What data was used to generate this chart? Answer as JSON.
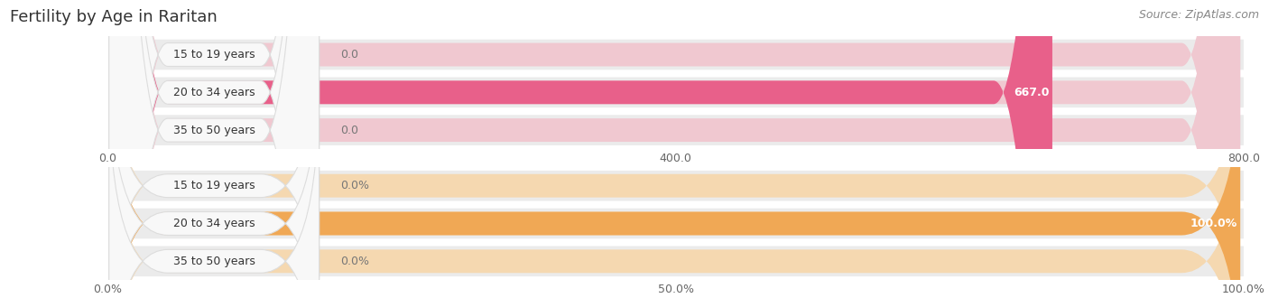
{
  "title": "Fertility by Age in Raritan",
  "source": "Source: ZipAtlas.com",
  "top_chart": {
    "categories": [
      "15 to 19 years",
      "20 to 34 years",
      "35 to 50 years"
    ],
    "values": [
      0.0,
      667.0,
      0.0
    ],
    "xlim": [
      0,
      800.0
    ],
    "xticks": [
      0.0,
      400.0,
      800.0
    ],
    "xticklabels": [
      "0.0",
      "400.0",
      "800.0"
    ],
    "bar_color": "#e8608a",
    "bar_bg_color": "#f0c8d0",
    "row_bg_color": "#ebebeb",
    "label_color_inside": "#ffffff",
    "label_color_outside": "#777777"
  },
  "bottom_chart": {
    "categories": [
      "15 to 19 years",
      "20 to 34 years",
      "35 to 50 years"
    ],
    "values": [
      0.0,
      100.0,
      0.0
    ],
    "xlim": [
      0,
      100.0
    ],
    "xticks": [
      0.0,
      50.0,
      100.0
    ],
    "xticklabels": [
      "0.0%",
      "50.0%",
      "100.0%"
    ],
    "bar_color": "#f0a855",
    "bar_bg_color": "#f5d8b0",
    "row_bg_color": "#ebebeb",
    "label_color_inside": "#ffffff",
    "label_color_outside": "#777777"
  },
  "category_label_color": "#333333",
  "pill_bg_color": "#f8f8f8",
  "pill_border_color": "#dddddd",
  "fig_bg_color": "#ffffff",
  "axes_bg_color": "#ebebeb",
  "grid_color": "#ffffff",
  "title_fontsize": 13,
  "source_fontsize": 9,
  "category_fontsize": 9,
  "label_fontsize": 9,
  "tick_fontsize": 9
}
